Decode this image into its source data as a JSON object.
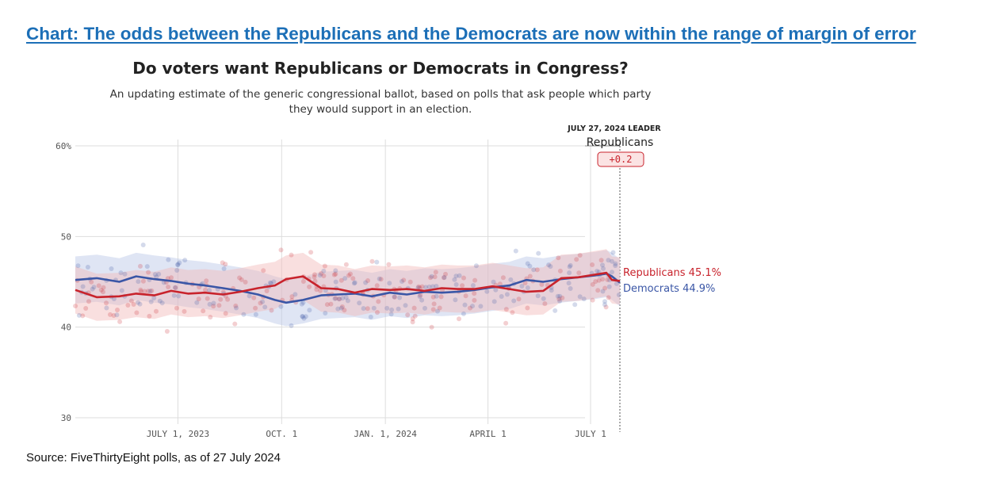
{
  "headline": "Chart: The odds between the Republicans and the Democrats are now within the range of margin of error",
  "source": "Source: FiveThirtyEight polls, as of 27 July 2024",
  "colors": {
    "headline": "#1c6fb7",
    "republicans": "#c8232c",
    "democrats": "#3a56a6",
    "republicans_light": "#f2b8b8",
    "democrats_light": "#b9c6e6",
    "grid": "#dddddd"
  },
  "chart_data": {
    "type": "line",
    "title": "Do voters want Republicans or Democrats in Congress?",
    "subtitle_lines": [
      "An updating estimate of the generic congressional ballot, based on polls that ask people which party",
      "they would support in an election."
    ],
    "xlabel": "",
    "ylabel": "",
    "ylim": [
      30,
      60
    ],
    "xlim": [
      "2023-04-01",
      "2024-07-27"
    ],
    "y_ticks": [
      {
        "value": 30,
        "label": "30"
      },
      {
        "value": 40,
        "label": "40"
      },
      {
        "value": 50,
        "label": "50"
      },
      {
        "value": 60,
        "label": "60%"
      }
    ],
    "x_ticks": [
      {
        "date": "2023-07-01",
        "label": "JULY 1, 2023"
      },
      {
        "date": "2023-10-01",
        "label": "OCT. 1"
      },
      {
        "date": "2024-01-01",
        "label": "JAN. 1, 2024"
      },
      {
        "date": "2024-04-01",
        "label": "APRIL 1"
      },
      {
        "date": "2024-07-01",
        "label": "JULY 1"
      }
    ],
    "grid": true,
    "leader": {
      "heading": "JULY 27, 2024 LEADER",
      "party": "Republicans",
      "margin": "+0.2",
      "date": "2024-07-27"
    },
    "series": [
      {
        "name": "Republicans",
        "end_label": "Republicans 45.1%",
        "x": [
          "2023-04-01",
          "2023-04-20",
          "2023-05-10",
          "2023-05-25",
          "2023-06-10",
          "2023-06-25",
          "2023-07-10",
          "2023-07-25",
          "2023-08-10",
          "2023-08-25",
          "2023-09-10",
          "2023-09-25",
          "2023-10-05",
          "2023-10-20",
          "2023-11-05",
          "2023-11-20",
          "2023-12-05",
          "2023-12-20",
          "2024-01-05",
          "2024-01-20",
          "2024-02-05",
          "2024-02-20",
          "2024-03-05",
          "2024-03-20",
          "2024-04-05",
          "2024-04-20",
          "2024-05-05",
          "2024-05-20",
          "2024-06-05",
          "2024-06-20",
          "2024-07-05",
          "2024-07-15",
          "2024-07-20",
          "2024-07-27"
        ],
        "values": [
          44.1,
          43.3,
          43.4,
          43.7,
          43.5,
          44.0,
          43.7,
          43.8,
          43.6,
          43.9,
          44.3,
          44.6,
          45.3,
          45.6,
          44.3,
          44.2,
          43.8,
          44.2,
          44.1,
          44.2,
          44.0,
          44.3,
          44.2,
          44.2,
          44.5,
          44.2,
          43.9,
          44.0,
          45.4,
          45.5,
          45.8,
          46.0,
          45.2,
          45.1
        ]
      },
      {
        "name": "Democrats",
        "end_label": "Democrats 44.9%",
        "x": [
          "2023-04-01",
          "2023-04-20",
          "2023-05-10",
          "2023-05-25",
          "2023-06-10",
          "2023-06-25",
          "2023-07-10",
          "2023-07-25",
          "2023-08-10",
          "2023-08-25",
          "2023-09-10",
          "2023-09-25",
          "2023-10-05",
          "2023-10-20",
          "2023-11-05",
          "2023-11-20",
          "2023-12-05",
          "2023-12-20",
          "2024-01-05",
          "2024-01-20",
          "2024-02-05",
          "2024-02-20",
          "2024-03-05",
          "2024-03-20",
          "2024-04-05",
          "2024-04-20",
          "2024-05-05",
          "2024-05-20",
          "2024-06-05",
          "2024-06-20",
          "2024-07-05",
          "2024-07-15",
          "2024-07-20",
          "2024-07-27"
        ],
        "values": [
          45.2,
          45.4,
          45.0,
          45.6,
          45.3,
          45.1,
          44.8,
          44.6,
          44.3,
          44.0,
          43.6,
          43.0,
          42.7,
          43.0,
          43.5,
          43.6,
          43.7,
          43.4,
          43.8,
          43.6,
          43.9,
          43.8,
          43.9,
          44.1,
          44.4,
          44.6,
          45.2,
          45.0,
          45.3,
          45.5,
          45.7,
          45.9,
          45.6,
          44.9
        ]
      }
    ]
  }
}
